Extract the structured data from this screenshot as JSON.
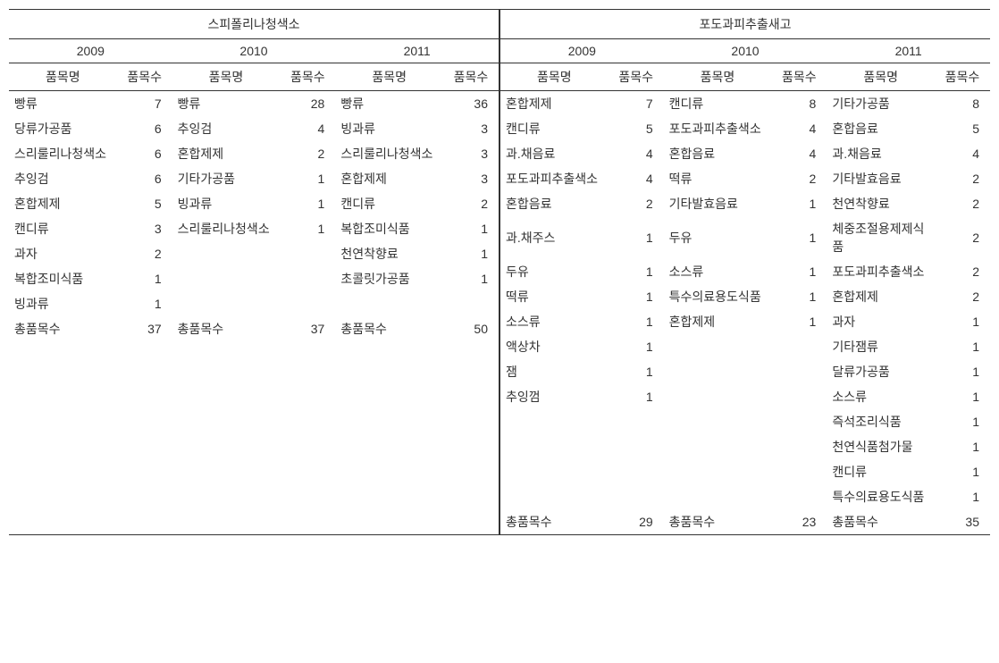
{
  "left": {
    "title": "스피폴리나청색소",
    "years": [
      "2009",
      "2010",
      "2011"
    ],
    "col_headers": [
      "품목명",
      "품목수"
    ],
    "rows": [
      [
        {
          "name": "빵류",
          "num": 7
        },
        {
          "name": "빵류",
          "num": 28
        },
        {
          "name": "빵류",
          "num": 36
        }
      ],
      [
        {
          "name": "당류가공품",
          "num": 6
        },
        {
          "name": "추잉검",
          "num": 4
        },
        {
          "name": "빙과류",
          "num": 3
        }
      ],
      [
        {
          "name": "스리룰리나청색소",
          "num": 6
        },
        {
          "name": "혼합제제",
          "num": 2
        },
        {
          "name": "스리룰리나청색소",
          "num": 3
        }
      ],
      [
        {
          "name": "추잉검",
          "num": 6
        },
        {
          "name": "기타가공품",
          "num": 1
        },
        {
          "name": "혼합제제",
          "num": 3
        }
      ],
      [
        {
          "name": "혼합제제",
          "num": 5
        },
        {
          "name": "빙과류",
          "num": 1
        },
        {
          "name": "캔디류",
          "num": 2
        }
      ],
      [
        {
          "name": "캔디류",
          "num": 3
        },
        {
          "name": "스리룰리나청색소",
          "num": 1
        },
        {
          "name": "복합조미식품",
          "num": 1
        }
      ],
      [
        {
          "name": "과자",
          "num": 2
        },
        {
          "name": "",
          "num": ""
        },
        {
          "name": "천연착향료",
          "num": 1
        }
      ],
      [
        {
          "name": "복합조미식품",
          "num": 1
        },
        {
          "name": "",
          "num": ""
        },
        {
          "name": "초콜릿가공품",
          "num": 1
        }
      ],
      [
        {
          "name": "빙과류",
          "num": 1
        },
        {
          "name": "",
          "num": ""
        },
        {
          "name": "",
          "num": ""
        }
      ],
      [
        {
          "name": "총품목수",
          "num": 37
        },
        {
          "name": "총품목수",
          "num": 37
        },
        {
          "name": "총품목수",
          "num": 50
        }
      ]
    ],
    "pad_rows": 9
  },
  "right": {
    "title": "포도과피추출새고",
    "years": [
      "2009",
      "2010",
      "2011"
    ],
    "col_headers": [
      "품목명",
      "품목수"
    ],
    "rows": [
      [
        {
          "name": "혼합제제",
          "num": 7
        },
        {
          "name": "캔디류",
          "num": 8
        },
        {
          "name": "기타가공품",
          "num": 8
        }
      ],
      [
        {
          "name": "캔디류",
          "num": 5
        },
        {
          "name": "포도과피추출색소",
          "num": 4
        },
        {
          "name": "혼합음료",
          "num": 5
        }
      ],
      [
        {
          "name": "과.채음료",
          "num": 4
        },
        {
          "name": "혼합음료",
          "num": 4
        },
        {
          "name": "과.채음료",
          "num": 4
        }
      ],
      [
        {
          "name": "포도과피추출색소",
          "num": 4
        },
        {
          "name": "떡류",
          "num": 2
        },
        {
          "name": "기타발효음료",
          "num": 2
        }
      ],
      [
        {
          "name": "혼합음료",
          "num": 2
        },
        {
          "name": "기타발효음료",
          "num": 1
        },
        {
          "name": "천연착향료",
          "num": 2
        }
      ],
      [
        {
          "name": "과.채주스",
          "num": 1
        },
        {
          "name": "두유",
          "num": 1
        },
        {
          "name": "체중조절용제제식품",
          "num": 2
        }
      ],
      [
        {
          "name": "두유",
          "num": 1
        },
        {
          "name": "소스류",
          "num": 1
        },
        {
          "name": "포도과피추출색소",
          "num": 2
        }
      ],
      [
        {
          "name": "떡류",
          "num": 1
        },
        {
          "name": "특수의료용도식품",
          "num": 1
        },
        {
          "name": "혼합제제",
          "num": 2
        }
      ],
      [
        {
          "name": "소스류",
          "num": 1
        },
        {
          "name": "혼합제제",
          "num": 1
        },
        {
          "name": "과자",
          "num": 1
        }
      ],
      [
        {
          "name": "액상차",
          "num": 1
        },
        {
          "name": "",
          "num": ""
        },
        {
          "name": "기타잼류",
          "num": 1
        }
      ],
      [
        {
          "name": "잼",
          "num": 1
        },
        {
          "name": "",
          "num": ""
        },
        {
          "name": "달류가공품",
          "num": 1
        }
      ],
      [
        {
          "name": "추잉껌",
          "num": 1
        },
        {
          "name": "",
          "num": ""
        },
        {
          "name": "소스류",
          "num": 1
        }
      ],
      [
        {
          "name": "",
          "num": ""
        },
        {
          "name": "",
          "num": ""
        },
        {
          "name": "즉석조리식품",
          "num": 1
        }
      ],
      [
        {
          "name": "",
          "num": ""
        },
        {
          "name": "",
          "num": ""
        },
        {
          "name": "천연식품첨가물",
          "num": 1
        }
      ],
      [
        {
          "name": "",
          "num": ""
        },
        {
          "name": "",
          "num": ""
        },
        {
          "name": "캔디류",
          "num": 1
        }
      ],
      [
        {
          "name": "",
          "num": ""
        },
        {
          "name": "",
          "num": ""
        },
        {
          "name": "특수의료용도식품",
          "num": 1
        }
      ],
      [
        {
          "name": "총품목수",
          "num": 29
        },
        {
          "name": "총품목수",
          "num": 23
        },
        {
          "name": "총품목수",
          "num": 35
        }
      ]
    ],
    "pad_rows": 0
  },
  "style": {
    "font_family": "Malgun Gothic",
    "font_size_pt": 11,
    "text_color": "#333333",
    "border_color": "#333333",
    "background_color": "#ffffff"
  }
}
